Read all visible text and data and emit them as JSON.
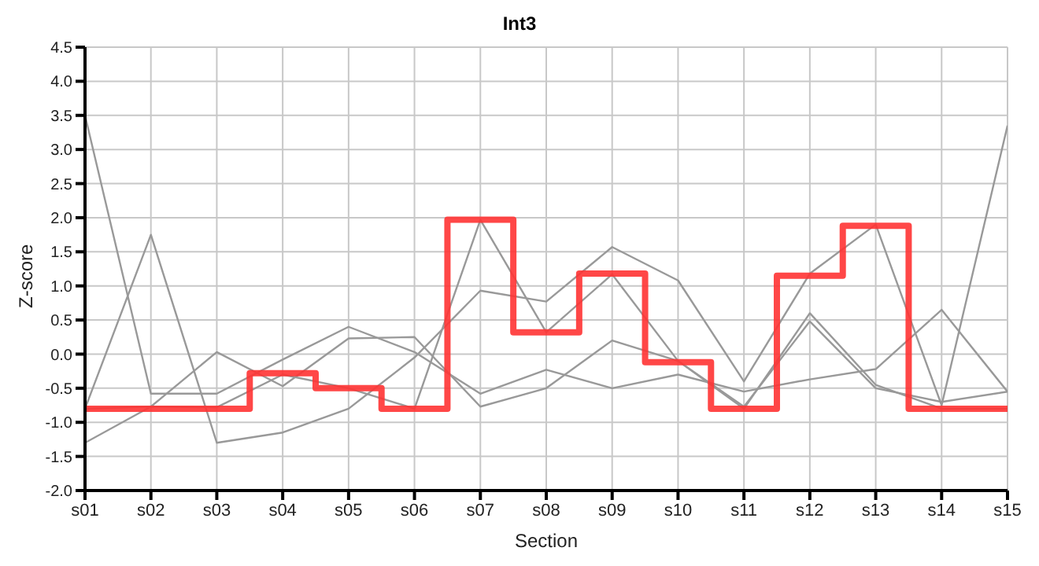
{
  "chart_data": {
    "type": "line",
    "title": "Int3",
    "xlabel": "Section",
    "ylabel": "Z-score",
    "categories": [
      "s01",
      "s02",
      "s03",
      "s04",
      "s05",
      "s06",
      "s07",
      "s08",
      "s09",
      "s10",
      "s11",
      "s12",
      "s13",
      "s14",
      "s15"
    ],
    "series": [
      {
        "color": "#999999",
        "values": [
          3.5,
          -0.58,
          -0.58,
          -0.08,
          0.4,
          0.03,
          -0.58,
          -0.23,
          -0.5,
          -0.3,
          -0.55,
          -0.37,
          -0.22,
          0.65,
          -0.55
        ]
      },
      {
        "color": "#999999",
        "values": [
          -0.8,
          1.75,
          -1.3,
          -1.15,
          -0.8,
          -0.05,
          0.93,
          0.77,
          1.57,
          1.08,
          -0.4,
          1.18,
          1.9,
          -0.75,
          3.35
        ]
      },
      {
        "color": "#999999",
        "values": [
          -1.3,
          -0.77,
          0.03,
          -0.47,
          0.23,
          0.25,
          -0.77,
          -0.5,
          0.2,
          -0.1,
          -0.77,
          0.48,
          -0.5,
          -0.7,
          -0.55
        ]
      },
      {
        "color": "#999999",
        "values": [
          -0.8,
          -0.77,
          -0.78,
          -0.3,
          -0.5,
          -0.8,
          1.97,
          0.32,
          1.17,
          -0.1,
          -0.8,
          0.6,
          -0.45,
          -0.8,
          -0.8
        ]
      },
      {
        "type": "step",
        "color": "#ff3333",
        "values": [
          -0.8,
          -0.8,
          -0.8,
          -0.28,
          -0.5,
          -0.8,
          1.97,
          0.32,
          1.18,
          -0.12,
          -0.8,
          1.15,
          1.88,
          -0.8,
          -0.8
        ]
      }
    ],
    "ylim": [
      -2,
      4.5
    ],
    "yticks": [
      {
        "value": -2,
        "label": "-2.0"
      },
      {
        "value": -1.5,
        "label": "-1.5"
      },
      {
        "value": -1,
        "label": "-1.0"
      },
      {
        "value": -0.5,
        "label": "-0.5"
      },
      {
        "value": 0,
        "label": "0.0"
      },
      {
        "value": 0.5,
        "label": "0.5"
      },
      {
        "value": 1,
        "label": "1.0"
      },
      {
        "value": 1.5,
        "label": "1.5"
      },
      {
        "value": 2,
        "label": "2.0"
      },
      {
        "value": 2.5,
        "label": "2.5"
      },
      {
        "value": 3,
        "label": "3.0"
      },
      {
        "value": 3.5,
        "label": "3.5"
      },
      {
        "value": 4,
        "label": "4.0"
      },
      {
        "value": 4.5,
        "label": "4.5"
      }
    ],
    "grid": true,
    "legend": false,
    "marker": "none"
  }
}
